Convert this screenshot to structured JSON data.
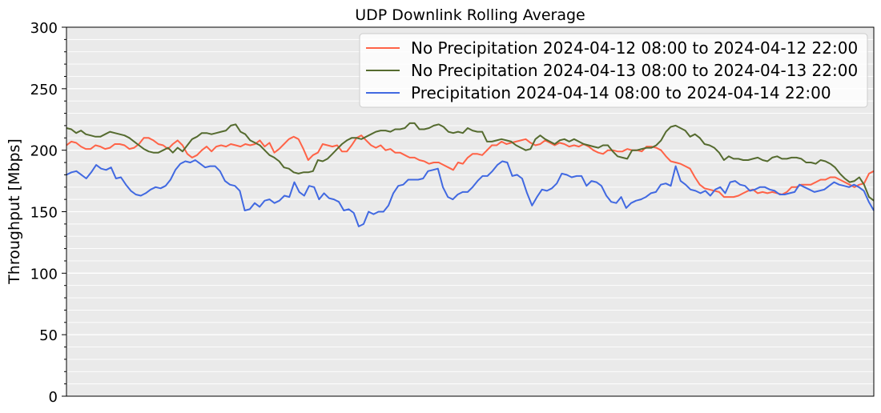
{
  "chart_data": {
    "type": "line",
    "title": "UDP Downlink Rolling Average",
    "xlabel": "",
    "ylabel": "Throughput [Mbps]",
    "ylim": [
      0,
      300
    ],
    "yticks": [
      0,
      50,
      100,
      150,
      200,
      250,
      300
    ],
    "grid": true,
    "legend_position": "top-right",
    "background": "#eaeaea",
    "series": [
      {
        "name": "No Precipitation 2024-04-12 08:00 to 2024-04-12 22:00",
        "color": "#ff6347",
        "values": [
          204,
          207,
          206,
          203,
          201,
          201,
          204,
          203,
          201,
          202,
          205,
          205,
          204,
          201,
          202,
          205,
          210,
          210,
          208,
          205,
          204,
          201,
          205,
          208,
          204,
          197,
          194,
          196,
          200,
          203,
          199,
          203,
          204,
          203,
          205,
          204,
          203,
          205,
          204,
          205,
          208,
          203,
          206,
          198,
          201,
          205,
          209,
          211,
          209,
          201,
          192,
          196,
          198,
          205,
          204,
          203,
          204,
          199,
          199,
          204,
          210,
          212,
          208,
          204,
          202,
          204,
          200,
          201,
          198,
          198,
          196,
          194,
          194,
          192,
          191,
          189,
          190,
          190,
          188,
          186,
          184,
          190,
          189,
          194,
          197,
          197,
          196,
          200,
          204,
          204,
          207,
          205,
          206,
          207,
          208,
          209,
          206,
          204,
          205,
          208,
          206,
          204,
          206,
          205,
          203,
          204,
          203,
          205,
          203,
          200,
          198,
          197,
          200,
          200,
          199,
          199,
          201,
          200,
          200,
          199,
          203,
          203,
          202,
          200,
          195,
          191,
          190,
          189,
          187,
          185,
          178,
          172,
          169,
          168,
          167,
          166,
          162,
          162,
          162,
          163,
          165,
          167,
          168,
          165,
          166,
          165,
          166,
          165,
          164,
          166,
          170,
          170,
          172,
          172,
          172,
          174,
          176,
          176,
          178,
          178,
          176,
          174,
          172,
          170,
          172,
          173,
          181,
          183
        ]
      },
      {
        "name": "No Precipitation 2024-04-13 08:00 to 2024-04-13 22:00",
        "color": "#556b2f",
        "values": [
          218,
          217,
          214,
          216,
          213,
          212,
          211,
          211,
          213,
          215,
          214,
          213,
          212,
          210,
          207,
          204,
          201,
          199,
          198,
          198,
          200,
          202,
          198,
          202,
          199,
          204,
          209,
          211,
          214,
          214,
          213,
          214,
          215,
          216,
          220,
          221,
          215,
          213,
          208,
          206,
          204,
          200,
          196,
          194,
          191,
          186,
          185,
          182,
          181,
          182,
          182,
          183,
          192,
          191,
          193,
          197,
          201,
          205,
          208,
          210,
          210,
          209,
          211,
          213,
          215,
          216,
          216,
          215,
          217,
          217,
          218,
          222,
          222,
          217,
          217,
          218,
          220,
          221,
          219,
          215,
          214,
          215,
          214,
          218,
          216,
          215,
          215,
          207,
          207,
          208,
          209,
          208,
          207,
          204,
          202,
          200,
          201,
          209,
          212,
          209,
          207,
          205,
          208,
          209,
          207,
          209,
          207,
          205,
          204,
          203,
          202,
          204,
          204,
          199,
          195,
          194,
          193,
          200,
          200,
          201,
          202,
          202,
          204,
          208,
          215,
          219,
          220,
          218,
          216,
          211,
          213,
          210,
          205,
          204,
          202,
          198,
          192,
          195,
          193,
          193,
          192,
          192,
          193,
          194,
          192,
          191,
          194,
          195,
          193,
          193,
          194,
          194,
          193,
          190,
          190,
          189,
          192,
          191,
          189,
          186,
          181,
          177,
          174,
          175,
          178,
          172,
          162,
          159
        ]
      },
      {
        "name": "Precipitation 2024-04-14 08:00 to 2024-04-14 22:00",
        "color": "#4169e1",
        "values": [
          180,
          182,
          183,
          180,
          177,
          182,
          188,
          185,
          184,
          186,
          177,
          178,
          172,
          167,
          164,
          163,
          165,
          168,
          170,
          169,
          171,
          176,
          184,
          189,
          191,
          190,
          192,
          189,
          186,
          187,
          187,
          183,
          175,
          172,
          171,
          167,
          151,
          152,
          157,
          154,
          159,
          160,
          157,
          159,
          163,
          162,
          174,
          166,
          163,
          171,
          170,
          160,
          165,
          161,
          160,
          158,
          151,
          152,
          149,
          138,
          140,
          150,
          148,
          150,
          150,
          155,
          165,
          171,
          172,
          176,
          176,
          176,
          177,
          183,
          184,
          185,
          170,
          162,
          160,
          164,
          166,
          166,
          170,
          175,
          179,
          179,
          183,
          188,
          191,
          190,
          179,
          180,
          177,
          165,
          155,
          162,
          168,
          167,
          169,
          173,
          181,
          180,
          178,
          179,
          179,
          171,
          175,
          174,
          171,
          163,
          158,
          157,
          162,
          153,
          157,
          159,
          160,
          162,
          165,
          166,
          172,
          173,
          171,
          187,
          175,
          172,
          168,
          167,
          165,
          167,
          163,
          168,
          170,
          165,
          174,
          175,
          172,
          171,
          167,
          168,
          170,
          170,
          168,
          167,
          164,
          164,
          165,
          166,
          172,
          170,
          168,
          166,
          167,
          168,
          171,
          174,
          172,
          171,
          170,
          172,
          170,
          167,
          158,
          151
        ]
      }
    ]
  }
}
